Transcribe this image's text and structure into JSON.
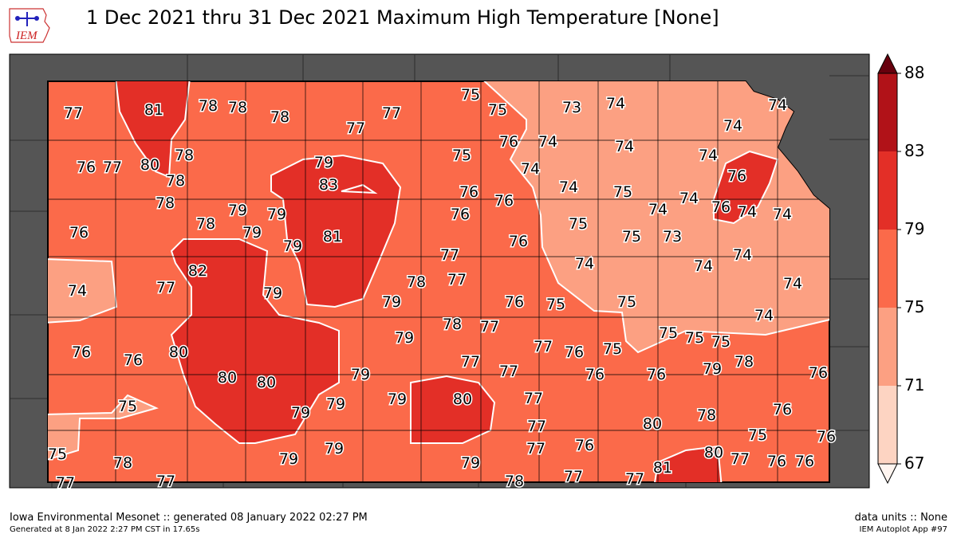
{
  "title": "1 Dec 2021 thru 31 Dec 2021 Maximum High Temperature [None]",
  "logo_text": "IEM",
  "footer": {
    "left_main": "Iowa Environmental Mesonet :: generated 08 January 2022 02:27 PM",
    "left_sub": "Generated at 8 Jan 2022 2:27 PM CST in 17.65s",
    "right_main": "data units :: None",
    "right_sub": "IEM Autoplot App #97"
  },
  "colorbar": {
    "ticks": [
      "88",
      "83",
      "79",
      "75",
      "71",
      "67"
    ],
    "bins": [
      {
        "range": [
          67,
          71
        ],
        "color": "#fdd4c2"
      },
      {
        "range": [
          71,
          75
        ],
        "color": "#fca082"
      },
      {
        "range": [
          75,
          79
        ],
        "color": "#fb6a4a"
      },
      {
        "range": [
          79,
          83
        ],
        "color": "#e32f27"
      },
      {
        "range": [
          83,
          88
        ],
        "color": "#b11218"
      }
    ],
    "over_color": "#67000d",
    "under_color": "#fff5f0"
  },
  "map_colors": {
    "outside": "#555555",
    "contour_line": "#ffffff"
  },
  "stations": [
    "77",
    "81",
    "78",
    "78",
    "78",
    "77",
    "77",
    "75",
    "75",
    "73",
    "74",
    "74",
    "76",
    "77",
    "80",
    "78",
    "78",
    "79",
    "83",
    "75",
    "76",
    "74",
    "74",
    "74",
    "74",
    "76",
    "74",
    "76",
    "76",
    "74",
    "75",
    "74",
    "76",
    "74",
    "74",
    "78",
    "78",
    "79",
    "79",
    "79",
    "79",
    "81",
    "76",
    "76",
    "75",
    "74",
    "75",
    "73",
    "76",
    "74",
    "77",
    "82",
    "77",
    "79",
    "78",
    "77",
    "74",
    "74",
    "74",
    "74",
    "79",
    "76",
    "75",
    "75",
    "74",
    "78",
    "77",
    "76",
    "76",
    "80",
    "79",
    "75",
    "75",
    "75",
    "77",
    "76",
    "75",
    "77",
    "77",
    "79",
    "78",
    "76",
    "76",
    "76",
    "80",
    "80",
    "79",
    "80",
    "77",
    "79",
    "79",
    "79",
    "75",
    "78",
    "76",
    "80",
    "77",
    "75",
    "76",
    "77",
    "76",
    "79",
    "79",
    "79",
    "75",
    "78",
    "80",
    "77",
    "76",
    "76",
    "81",
    "77",
    "77",
    "78",
    "77",
    "77"
  ]
}
